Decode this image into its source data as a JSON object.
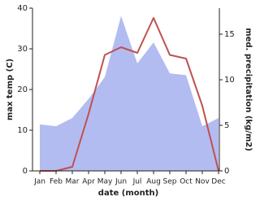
{
  "chart_data": {
    "type": "line-area",
    "x_label": "date (month)",
    "y_label": "max temp (C)",
    "y2_label": "med. precipitation (kg/m2)",
    "categories": [
      "Jan",
      "Feb",
      "Mar",
      "Apr",
      "May",
      "Jun",
      "Jul",
      "Aug",
      "Sep",
      "Oct",
      "Nov",
      "Dec"
    ],
    "ylim": [
      0,
      40
    ],
    "yticks": [
      0,
      10,
      20,
      30,
      40
    ],
    "y2lim": [
      0,
      17.86
    ],
    "y2ticks": [
      0,
      5,
      10,
      15
    ],
    "series": [
      {
        "name": "med. precipitation",
        "axis": "y2",
        "kind": "area",
        "color": "#b3bcf0",
        "values": [
          5.1,
          4.9,
          5.8,
          7.9,
          10.3,
          17.0,
          11.8,
          14.1,
          10.7,
          10.5,
          4.9,
          5.8
        ]
      },
      {
        "name": "max temp",
        "kind": "line",
        "color": "#c0504f",
        "values": [
          0,
          0,
          1,
          14,
          28.5,
          30.4,
          29,
          37.6,
          28.5,
          27.6,
          16,
          0
        ]
      }
    ]
  }
}
